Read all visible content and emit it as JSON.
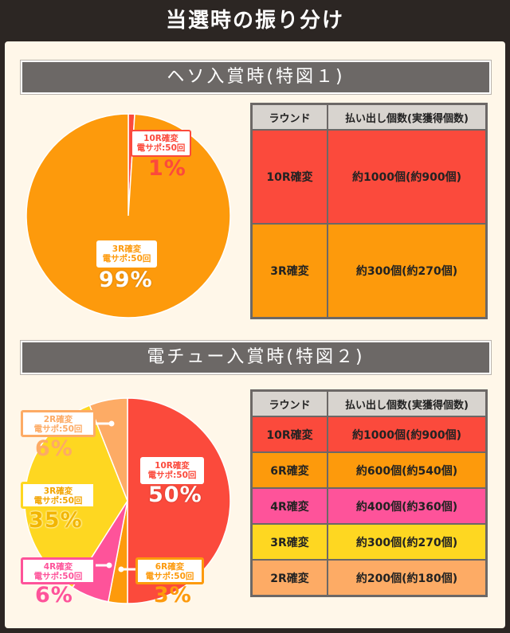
{
  "title": "当選時の振り分け",
  "colors": {
    "red": "#fb4a3c",
    "orange": "#fd9a0c",
    "magenta": "#fe539a",
    "yellow": "#fed721",
    "peach": "#fdab65"
  },
  "chart_data": [
    {
      "type": "pie",
      "title": "ヘソ入賞時(特図１)",
      "slices": [
        {
          "label": "10R確変",
          "sublabel": "電サポ:50回",
          "value": 1,
          "value_label": "1%",
          "color": "#fb4a3c"
        },
        {
          "label": "3R確変",
          "sublabel": "電サポ:50回",
          "value": 99,
          "value_label": "99%",
          "color": "#fd9a0c"
        }
      ]
    },
    {
      "type": "pie",
      "title": "電チュー入賞時(特図２)",
      "slices": [
        {
          "label": "10R確変",
          "sublabel": "電サポ:50回",
          "value": 50,
          "value_label": "50%",
          "color": "#fb4a3c"
        },
        {
          "label": "6R確変",
          "sublabel": "電サポ:50回",
          "value": 3,
          "value_label": "3%",
          "color": "#fd9a0c"
        },
        {
          "label": "4R確変",
          "sublabel": "電サポ:50回",
          "value": 6,
          "value_label": "6%",
          "color": "#fe539a"
        },
        {
          "label": "3R確変",
          "sublabel": "電サポ:50回",
          "value": 35,
          "value_label": "35%",
          "color": "#fed721"
        },
        {
          "label": "2R確変",
          "sublabel": "電サポ:50回",
          "value": 6,
          "value_label": "6%",
          "color": "#fdab65"
        }
      ]
    }
  ],
  "tables": [
    {
      "headers": [
        "ラウンド",
        "払い出し個数(実獲得個数)"
      ],
      "rows": [
        {
          "round": "10R確変",
          "payout": "約1000個(約900個)",
          "color": "#fb4a3c"
        },
        {
          "round": "3R確変",
          "payout": "約300個(約270個)",
          "color": "#fd9a0c"
        }
      ]
    },
    {
      "headers": [
        "ラウンド",
        "払い出し個数(実獲得個数)"
      ],
      "rows": [
        {
          "round": "10R確変",
          "payout": "約1000個(約900個)",
          "color": "#fb4a3c"
        },
        {
          "round": "6R確変",
          "payout": "約600個(約540個)",
          "color": "#fd9a0c"
        },
        {
          "round": "4R確変",
          "payout": "約400個(約360個)",
          "color": "#fe539a"
        },
        {
          "round": "3R確変",
          "payout": "約300個(約270個)",
          "color": "#fed721"
        },
        {
          "round": "2R確変",
          "payout": "約200個(約180個)",
          "color": "#fdab65"
        }
      ]
    }
  ]
}
